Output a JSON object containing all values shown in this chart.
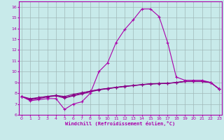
{
  "xlabel": "Windchill (Refroidissement éolien,°C)",
  "background_color": "#c8eaea",
  "line_color": "#aa00aa",
  "line_color2": "#880088",
  "grid_color": "#a0b8b8",
  "x": [
    0,
    1,
    2,
    3,
    4,
    5,
    6,
    7,
    8,
    9,
    10,
    11,
    12,
    13,
    14,
    15,
    16,
    17,
    18,
    19,
    20,
    21,
    22,
    23
  ],
  "series1": [
    7.7,
    7.3,
    7.4,
    7.5,
    7.5,
    6.5,
    7.0,
    7.2,
    8.0,
    10.0,
    10.8,
    12.7,
    13.9,
    14.8,
    15.8,
    15.8,
    15.1,
    12.7,
    9.5,
    9.2,
    9.2,
    9.2,
    9.0,
    8.4
  ],
  "series2": [
    7.7,
    7.4,
    7.6,
    7.7,
    7.8,
    7.6,
    7.8,
    8.0,
    8.2,
    8.35,
    8.45,
    8.55,
    8.65,
    8.72,
    8.8,
    8.87,
    8.9,
    8.92,
    9.0,
    9.1,
    9.1,
    9.1,
    9.0,
    8.4
  ],
  "series3": [
    7.7,
    7.4,
    7.5,
    7.65,
    7.75,
    7.55,
    7.75,
    7.92,
    8.12,
    8.3,
    8.42,
    8.52,
    8.62,
    8.7,
    8.78,
    8.85,
    8.88,
    8.9,
    8.98,
    9.08,
    9.08,
    9.08,
    8.98,
    8.38
  ],
  "series4": [
    7.7,
    7.5,
    7.6,
    7.7,
    7.8,
    7.7,
    7.9,
    8.05,
    8.18,
    8.33,
    8.43,
    8.53,
    8.63,
    8.71,
    8.79,
    8.86,
    8.89,
    8.91,
    8.99,
    9.09,
    9.09,
    9.09,
    8.99,
    8.39
  ],
  "ylim": [
    6,
    16.5
  ],
  "xlim": [
    -0.3,
    23.3
  ],
  "yticks": [
    6,
    7,
    8,
    9,
    10,
    11,
    12,
    13,
    14,
    15,
    16
  ],
  "xticks": [
    0,
    1,
    2,
    3,
    4,
    5,
    6,
    7,
    8,
    9,
    10,
    11,
    12,
    13,
    14,
    15,
    16,
    17,
    18,
    19,
    20,
    21,
    22,
    23
  ]
}
